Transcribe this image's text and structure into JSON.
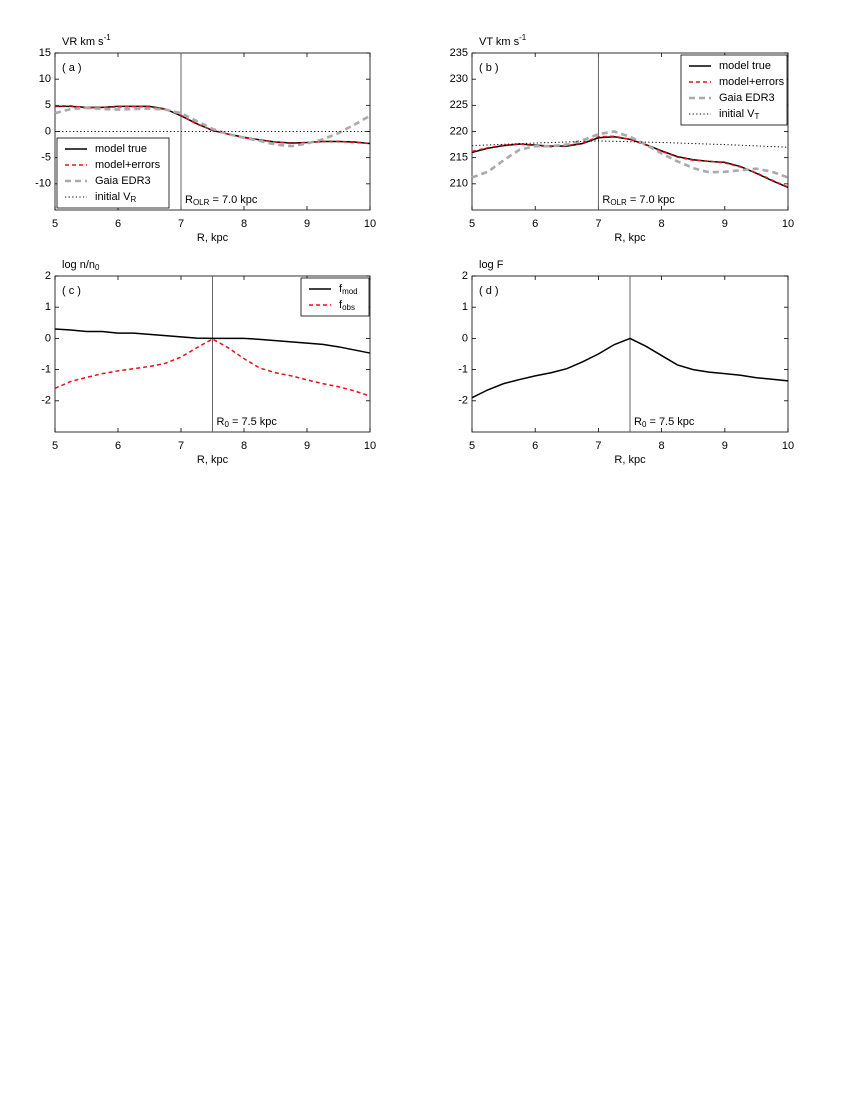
{
  "chart_data": [
    {
      "type": "line",
      "panel_label": "( a )",
      "y_label": {
        "text": "VR  km s",
        "sup": "-1"
      },
      "x_label": "R, kpc",
      "xlim": [
        5,
        10
      ],
      "xticks": [
        5,
        6,
        7,
        8,
        9,
        10
      ],
      "ylim": [
        -15,
        15
      ],
      "yticks": [
        -10,
        -5,
        0,
        5,
        10,
        15
      ],
      "vline": 7,
      "annotation": {
        "text": "R",
        "sub": "OLR",
        "rest": " =  7.0 kpc"
      },
      "legend": "lower left",
      "x": [
        5,
        5.25,
        5.5,
        5.75,
        6,
        6.25,
        6.5,
        6.75,
        7,
        7.25,
        7.5,
        7.75,
        8,
        8.25,
        8.5,
        8.75,
        9,
        9.25,
        9.5,
        9.75,
        10
      ],
      "series": [
        {
          "name": "model true",
          "color": "#000000",
          "style": "solid",
          "values": [
            4.8,
            4.8,
            4.6,
            4.6,
            4.8,
            4.8,
            4.8,
            4.3,
            3.0,
            1.5,
            0.2,
            -0.5,
            -1.1,
            -1.6,
            -2.0,
            -2.2,
            -2.1,
            -1.9,
            -1.9,
            -2.0,
            -2.3
          ]
        },
        {
          "name": "model+errors",
          "color": "#e8101a",
          "style": "dashed",
          "values": [
            4.9,
            4.9,
            4.5,
            4.6,
            4.7,
            4.8,
            4.7,
            4.2,
            3.1,
            1.4,
            0.3,
            -0.5,
            -1.2,
            -1.6,
            -2.0,
            -2.3,
            -2.1,
            -1.9,
            -1.9,
            -2.1,
            -2.3
          ]
        },
        {
          "name": "Gaia EDR3",
          "color": "#aaaaaa",
          "style": "thick-dashed",
          "values": [
            3.5,
            4.3,
            4.5,
            4.3,
            4.2,
            4.3,
            4.4,
            4.2,
            3.5,
            2.0,
            0.5,
            -0.5,
            -1.2,
            -1.8,
            -2.5,
            -2.8,
            -2.3,
            -1.5,
            -0.3,
            1.3,
            3.0
          ]
        },
        {
          "name": "initial V",
          "name_sub": "R",
          "color": "#000000",
          "style": "dotted",
          "x": [
            5,
            10
          ],
          "values": [
            0,
            0
          ]
        }
      ]
    },
    {
      "type": "line",
      "panel_label": "( b )",
      "y_label": {
        "text": "VT  km s",
        "sup": "-1"
      },
      "x_label": "R, kpc",
      "xlim": [
        5,
        10
      ],
      "xticks": [
        5,
        6,
        7,
        8,
        9,
        10
      ],
      "ylim": [
        205,
        235
      ],
      "yticks": [
        210,
        215,
        220,
        225,
        230,
        235
      ],
      "vline": 7,
      "annotation": {
        "text": "R",
        "sub": "OLR",
        "rest": " =  7.0 kpc"
      },
      "legend": "upper right",
      "x": [
        5,
        5.25,
        5.5,
        5.75,
        6,
        6.25,
        6.5,
        6.75,
        7,
        7.25,
        7.5,
        7.75,
        8,
        8.25,
        8.5,
        8.75,
        9,
        9.25,
        9.5,
        9.75,
        10
      ],
      "series": [
        {
          "name": "model true",
          "color": "#000000",
          "style": "solid",
          "values": [
            216.0,
            216.8,
            217.3,
            217.6,
            217.4,
            217.2,
            217.2,
            217.7,
            218.8,
            219.0,
            218.5,
            217.5,
            216.3,
            215.2,
            214.6,
            214.3,
            214.1,
            213.3,
            212.0,
            210.6,
            209.3
          ]
        },
        {
          "name": "model+errors",
          "color": "#e8101a",
          "style": "dashed",
          "values": [
            216.2,
            216.9,
            217.4,
            217.6,
            217.3,
            217.1,
            217.3,
            217.8,
            219.0,
            219.1,
            218.5,
            217.4,
            216.2,
            215.1,
            214.5,
            214.3,
            214.0,
            213.2,
            212.1,
            210.7,
            209.4
          ]
        },
        {
          "name": "Gaia EDR3",
          "color": "#aaaaaa",
          "style": "thick-dashed",
          "values": [
            211.2,
            212.3,
            214.5,
            216.5,
            217.2,
            217.2,
            217.5,
            218.3,
            219.5,
            220.0,
            219.0,
            217.5,
            215.8,
            214.3,
            213.0,
            212.2,
            212.3,
            212.6,
            212.9,
            212.3,
            211.2
          ]
        },
        {
          "name": "initial V",
          "name_sub": "T",
          "color": "#000000",
          "style": "dotted",
          "x": [
            5,
            6,
            7,
            8,
            9,
            10
          ],
          "values": [
            217.3,
            217.8,
            218.2,
            217.9,
            217.5,
            217.0
          ]
        }
      ]
    },
    {
      "type": "line",
      "panel_label": "( c )",
      "y_label": {
        "text": "log n/n",
        "sub": "0"
      },
      "x_label": "R, kpc",
      "xlim": [
        5,
        10
      ],
      "xticks": [
        5,
        6,
        7,
        8,
        9,
        10
      ],
      "ylim": [
        -3,
        2
      ],
      "yticks": [
        -2,
        -1,
        0,
        1,
        2
      ],
      "vline": 7.5,
      "annotation": {
        "text": "R",
        "sub": "0",
        "rest": " =  7.5 kpc"
      },
      "legend": "upper right",
      "x": [
        5,
        5.25,
        5.5,
        5.75,
        6,
        6.25,
        6.5,
        6.75,
        7,
        7.25,
        7.5,
        7.75,
        8,
        8.25,
        8.5,
        8.75,
        9,
        9.25,
        9.5,
        9.75,
        10
      ],
      "series": [
        {
          "name": "f",
          "name_sub": "mod",
          "color": "#000000",
          "style": "solid",
          "values": [
            0.3,
            0.27,
            0.22,
            0.22,
            0.17,
            0.17,
            0.13,
            0.09,
            0.05,
            0.01,
            0,
            0,
            0,
            -0.03,
            -0.07,
            -0.11,
            -0.15,
            -0.19,
            -0.27,
            -0.37,
            -0.47
          ]
        },
        {
          "name": "f",
          "name_sub": "obs",
          "color": "#e8101a",
          "style": "dashed",
          "values": [
            -1.6,
            -1.38,
            -1.25,
            -1.13,
            -1.04,
            -0.97,
            -0.9,
            -0.8,
            -0.6,
            -0.3,
            -0.02,
            -0.3,
            -0.65,
            -0.95,
            -1.1,
            -1.2,
            -1.33,
            -1.45,
            -1.55,
            -1.68,
            -1.85
          ]
        }
      ]
    },
    {
      "type": "line",
      "panel_label": "( d )",
      "y_label": {
        "text": "log F"
      },
      "x_label": "R, kpc",
      "xlim": [
        5,
        10
      ],
      "xticks": [
        5,
        6,
        7,
        8,
        9,
        10
      ],
      "ylim": [
        -3,
        2
      ],
      "yticks": [
        -2,
        -1,
        0,
        1,
        2
      ],
      "vline": 7.5,
      "annotation": {
        "text": "R",
        "sub": "0",
        "rest": " =  7.5 kpc"
      },
      "x": [
        5,
        5.25,
        5.5,
        5.75,
        6,
        6.25,
        6.5,
        6.75,
        7,
        7.25,
        7.5,
        7.75,
        8,
        8.25,
        8.5,
        8.75,
        9,
        9.25,
        9.5,
        9.75,
        10
      ],
      "series": [
        {
          "color": "#000000",
          "style": "solid",
          "values": [
            -1.9,
            -1.65,
            -1.45,
            -1.32,
            -1.2,
            -1.1,
            -0.97,
            -0.75,
            -0.5,
            -0.2,
            0,
            -0.25,
            -0.55,
            -0.85,
            -1.0,
            -1.08,
            -1.13,
            -1.18,
            -1.26,
            -1.31,
            -1.36
          ]
        }
      ]
    }
  ]
}
